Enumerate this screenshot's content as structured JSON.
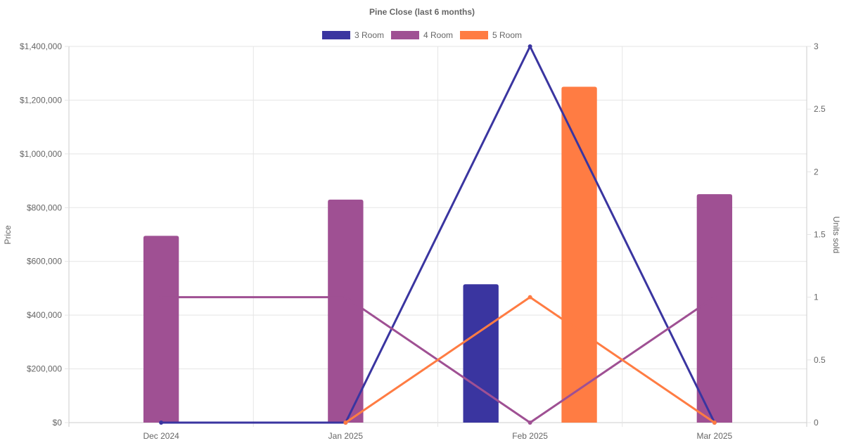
{
  "chart_data": {
    "type": "bar",
    "title": "Pine Close (last 6 months)",
    "categories": [
      "Dec 2024",
      "Jan 2025",
      "Feb 2025",
      "Mar 2025"
    ],
    "y_left": {
      "label": "Price",
      "min": 0,
      "max": 1400000,
      "ticks": [
        0,
        200000,
        400000,
        600000,
        800000,
        1000000,
        1200000,
        1400000
      ],
      "tick_labels": [
        "$0",
        "$200,000",
        "$400,000",
        "$600,000",
        "$800,000",
        "$1,000,000",
        "$1,200,000",
        "$1,400,000"
      ]
    },
    "y_right": {
      "label": "Units sold",
      "min": 0,
      "max": 3,
      "ticks": [
        0,
        0.5,
        1,
        1.5,
        2,
        2.5,
        3
      ],
      "tick_labels": [
        "0",
        "0.5",
        "1",
        "1.5",
        "2",
        "2.5",
        "3"
      ]
    },
    "grid": true,
    "legend_position": "top",
    "series": [
      {
        "name": "3 Room",
        "color": "#3a35a0",
        "price": [
          null,
          null,
          515000,
          null
        ],
        "units": [
          0,
          0,
          3,
          0
        ]
      },
      {
        "name": "4 Room",
        "color": "#9f5093",
        "price": [
          695000,
          830000,
          null,
          850000
        ],
        "units": [
          1,
          1,
          0,
          1
        ]
      },
      {
        "name": "5 Room",
        "color": "#ff7c43",
        "price": [
          null,
          null,
          1250000,
          null
        ],
        "units": [
          null,
          0,
          1,
          0
        ]
      }
    ]
  }
}
